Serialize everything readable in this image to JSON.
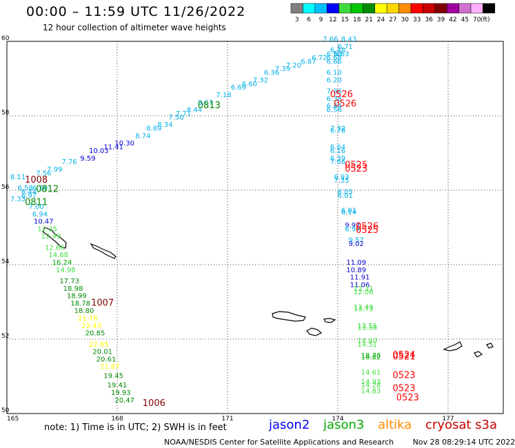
{
  "header": {
    "title": "00:00 – 11:59 UTC 11/26/2022",
    "subtitle": "12 hour collection of altimeter wave heights"
  },
  "legend": {
    "unit": "(ft)",
    "bins": [
      {
        "label": "3",
        "color": "#808080"
      },
      {
        "label": "6",
        "color": "#00ffff"
      },
      {
        "label": "9",
        "color": "#00bfff"
      },
      {
        "label": "12",
        "color": "#0000ff"
      },
      {
        "label": "15",
        "color": "#3cdc3c"
      },
      {
        "label": "18",
        "color": "#00c800"
      },
      {
        "label": "21",
        "color": "#008c00"
      },
      {
        "label": "24",
        "color": "#ffff00"
      },
      {
        "label": "27",
        "color": "#ffd700"
      },
      {
        "label": "30",
        "color": "#ff8c00"
      },
      {
        "label": "33",
        "color": "#ff0000"
      },
      {
        "label": "36",
        "color": "#c80000"
      },
      {
        "label": "39",
        "color": "#800000"
      },
      {
        "label": "42",
        "color": "#a000a0"
      },
      {
        "label": "45",
        "color": "#d070d0"
      },
      {
        "label": "70",
        "color": "#ffb0ff"
      },
      {
        "label": "",
        "color": "#000000"
      }
    ]
  },
  "axes": {
    "lat_labels": [
      "60",
      "58",
      "56",
      "54",
      "52",
      "50"
    ],
    "lon_labels": [
      "165",
      "168",
      "171",
      "174",
      "177"
    ]
  },
  "colors": {
    "c6": "#00b0e8",
    "c12": "#0000cc",
    "c15": "#40dd40",
    "c18": "#00aa00",
    "c21": "#008800",
    "c24": "#ffff00",
    "c33": "#ff0000",
    "c39": "#800000"
  },
  "map_data": {
    "swh_labels": [
      {
        "lon": 173.8,
        "lat": 60.0,
        "text": "7.66",
        "c": "c6"
      },
      {
        "lon": 174.3,
        "lat": 60.0,
        "text": "8.43",
        "c": "c6"
      },
      {
        "lon": 174.2,
        "lat": 59.8,
        "text": "6.71",
        "c": "c6"
      },
      {
        "lon": 174.0,
        "lat": 59.7,
        "text": "6.48",
        "c": "c6"
      },
      {
        "lon": 173.9,
        "lat": 59.6,
        "text": "6.58",
        "c": "c6"
      },
      {
        "lon": 174.1,
        "lat": 59.6,
        "text": "6.63",
        "c": "c6"
      },
      {
        "lon": 173.5,
        "lat": 59.5,
        "text": "6.72",
        "c": "c6"
      },
      {
        "lon": 173.9,
        "lat": 59.5,
        "text": "6.68",
        "c": "c6"
      },
      {
        "lon": 173.9,
        "lat": 59.4,
        "text": "6.66",
        "c": "c6"
      },
      {
        "lon": 173.2,
        "lat": 59.4,
        "text": "6.87",
        "c": "c6"
      },
      {
        "lon": 172.8,
        "lat": 59.3,
        "text": "7.20",
        "c": "c6"
      },
      {
        "lon": 172.5,
        "lat": 59.2,
        "text": "7.39",
        "c": "c6"
      },
      {
        "lon": 172.2,
        "lat": 59.1,
        "text": "6.36",
        "c": "c6"
      },
      {
        "lon": 173.9,
        "lat": 59.1,
        "text": "6.10",
        "c": "c6"
      },
      {
        "lon": 173.9,
        "lat": 58.9,
        "text": "6.20",
        "c": "c6"
      },
      {
        "lon": 171.9,
        "lat": 58.9,
        "text": "7.32",
        "c": "c6"
      },
      {
        "lon": 171.6,
        "lat": 58.8,
        "text": "6.60",
        "c": "c6"
      },
      {
        "lon": 171.3,
        "lat": 58.7,
        "text": "6.69",
        "c": "c6"
      },
      {
        "lon": 173.9,
        "lat": 58.6,
        "text": "7.36",
        "c": "c6"
      },
      {
        "lon": 170.9,
        "lat": 58.5,
        "text": "7.18",
        "c": "c6"
      },
      {
        "lon": 173.9,
        "lat": 58.4,
        "text": "6.38",
        "c": "c6"
      },
      {
        "lon": 170.4,
        "lat": 58.3,
        "text": "8.67",
        "c": "c6"
      },
      {
        "lon": 173.9,
        "lat": 58.2,
        "text": "6.44",
        "c": "c6"
      },
      {
        "lon": 173.9,
        "lat": 58.1,
        "text": "6.56",
        "c": "c6"
      },
      {
        "lon": 170.1,
        "lat": 58.1,
        "text": "8.44",
        "c": "c6"
      },
      {
        "lon": 169.8,
        "lat": 58.0,
        "text": "7.71",
        "c": "c6"
      },
      {
        "lon": 169.6,
        "lat": 57.9,
        "text": "7.50",
        "c": "c6"
      },
      {
        "lon": 169.3,
        "lat": 57.7,
        "text": "8.34",
        "c": "c6"
      },
      {
        "lon": 174.0,
        "lat": 57.6,
        "text": "7.32",
        "c": "c6"
      },
      {
        "lon": 174.0,
        "lat": 57.55,
        "text": "6.78",
        "c": "c6"
      },
      {
        "lon": 169.0,
        "lat": 57.6,
        "text": "8.89",
        "c": "c6"
      },
      {
        "lon": 168.7,
        "lat": 57.4,
        "text": "8.74",
        "c": "c6"
      },
      {
        "lon": 168.2,
        "lat": 57.2,
        "text": "10.30",
        "c": "c12"
      },
      {
        "lon": 167.9,
        "lat": 57.1,
        "text": "11.41",
        "c": "c12"
      },
      {
        "lon": 174.0,
        "lat": 57.1,
        "text": "6.64",
        "c": "c6"
      },
      {
        "lon": 174.0,
        "lat": 57.0,
        "text": "6.16",
        "c": "c6"
      },
      {
        "lon": 167.5,
        "lat": 57.0,
        "text": "10.03",
        "c": "c12"
      },
      {
        "lon": 167.2,
        "lat": 56.8,
        "text": "9.59",
        "c": "c12"
      },
      {
        "lon": 174.0,
        "lat": 56.8,
        "text": "6.39",
        "c": "c6"
      },
      {
        "lon": 174.0,
        "lat": 56.7,
        "text": "7.66",
        "c": "c6"
      },
      {
        "lon": 166.7,
        "lat": 56.7,
        "text": "7.76",
        "c": "c6"
      },
      {
        "lon": 166.3,
        "lat": 56.5,
        "text": "7.99",
        "c": "c6"
      },
      {
        "lon": 166.0,
        "lat": 56.4,
        "text": "7.56",
        "c": "c6"
      },
      {
        "lon": 174.1,
        "lat": 56.3,
        "text": "6.93",
        "c": "c6"
      },
      {
        "lon": 174.1,
        "lat": 56.2,
        "text": "7.35",
        "c": "c6"
      },
      {
        "lon": 165.3,
        "lat": 56.3,
        "text": "8.11",
        "c": "c6"
      },
      {
        "lon": 165.5,
        "lat": 56.0,
        "text": "6.58",
        "c": "c6"
      },
      {
        "lon": 165.9,
        "lat": 56.0,
        "text": "6.50",
        "c": "c6"
      },
      {
        "lon": 165.6,
        "lat": 55.9,
        "text": "6.44",
        "c": "c6"
      },
      {
        "lon": 165.6,
        "lat": 55.8,
        "text": "6.97",
        "c": "c6"
      },
      {
        "lon": 165.3,
        "lat": 55.7,
        "text": "7.33",
        "c": "c6"
      },
      {
        "lon": 174.2,
        "lat": 55.9,
        "text": "6.05",
        "c": "c6"
      },
      {
        "lon": 174.2,
        "lat": 55.8,
        "text": "6.01",
        "c": "c6"
      },
      {
        "lon": 165.8,
        "lat": 55.5,
        "text": "7.00",
        "c": "c6"
      },
      {
        "lon": 174.3,
        "lat": 55.4,
        "text": "6.01",
        "c": "c6"
      },
      {
        "lon": 174.3,
        "lat": 55.35,
        "text": "6.14",
        "c": "c6"
      },
      {
        "lon": 165.9,
        "lat": 55.3,
        "text": "6.94",
        "c": "c6"
      },
      {
        "lon": 166.0,
        "lat": 55.1,
        "text": "10.47",
        "c": "c12"
      },
      {
        "lon": 174.4,
        "lat": 55.0,
        "text": "9.97",
        "c": "c12"
      },
      {
        "lon": 174.4,
        "lat": 54.9,
        "text": "6.94",
        "c": "c6"
      },
      {
        "lon": 166.1,
        "lat": 54.9,
        "text": "12.25",
        "c": "c15"
      },
      {
        "lon": 166.2,
        "lat": 54.7,
        "text": "12.49",
        "c": "c15"
      },
      {
        "lon": 174.5,
        "lat": 54.6,
        "text": "9.57",
        "c": "c6"
      },
      {
        "lon": 174.5,
        "lat": 54.5,
        "text": "9.02",
        "c": "c12"
      },
      {
        "lon": 166.3,
        "lat": 54.4,
        "text": "12.66",
        "c": "c15"
      },
      {
        "lon": 166.4,
        "lat": 54.2,
        "text": "14.68",
        "c": "c15"
      },
      {
        "lon": 166.5,
        "lat": 54.0,
        "text": "16.24",
        "c": "c18"
      },
      {
        "lon": 174.5,
        "lat": 54.0,
        "text": "11.09",
        "c": "c12"
      },
      {
        "lon": 174.5,
        "lat": 53.8,
        "text": "10.89",
        "c": "c12"
      },
      {
        "lon": 166.6,
        "lat": 53.8,
        "text": "14.98",
        "c": "c15"
      },
      {
        "lon": 174.6,
        "lat": 53.6,
        "text": "11.91",
        "c": "c12"
      },
      {
        "lon": 166.7,
        "lat": 53.5,
        "text": "17.73",
        "c": "c21"
      },
      {
        "lon": 174.6,
        "lat": 53.4,
        "text": "11.06",
        "c": "c12"
      },
      {
        "lon": 166.8,
        "lat": 53.3,
        "text": "18.98",
        "c": "c21"
      },
      {
        "lon": 174.7,
        "lat": 53.3,
        "text": "12.31",
        "c": "c15"
      },
      {
        "lon": 174.7,
        "lat": 53.2,
        "text": "12.06",
        "c": "c15"
      },
      {
        "lon": 166.9,
        "lat": 53.1,
        "text": "18.99",
        "c": "c21"
      },
      {
        "lon": 167.0,
        "lat": 52.9,
        "text": "18.78",
        "c": "c21"
      },
      {
        "lon": 174.7,
        "lat": 52.8,
        "text": "12.49",
        "c": "c15"
      },
      {
        "lon": 174.7,
        "lat": 52.75,
        "text": "13.73",
        "c": "c15"
      },
      {
        "lon": 167.1,
        "lat": 52.7,
        "text": "18.80",
        "c": "c21"
      },
      {
        "lon": 167.2,
        "lat": 52.5,
        "text": "21.76",
        "c": "c24"
      },
      {
        "lon": 174.8,
        "lat": 52.3,
        "text": "13.51",
        "c": "c15"
      },
      {
        "lon": 174.8,
        "lat": 52.25,
        "text": "13.30",
        "c": "c15"
      },
      {
        "lon": 167.3,
        "lat": 52.3,
        "text": "22.43",
        "c": "c24"
      },
      {
        "lon": 167.4,
        "lat": 52.1,
        "text": "20.85",
        "c": "c21"
      },
      {
        "lon": 174.8,
        "lat": 51.9,
        "text": "14.40",
        "c": "c15"
      },
      {
        "lon": 174.8,
        "lat": 51.8,
        "text": "14.51",
        "c": "c15"
      },
      {
        "lon": 167.5,
        "lat": 51.8,
        "text": "22.85",
        "c": "c24"
      },
      {
        "lon": 167.6,
        "lat": 51.6,
        "text": "20.01",
        "c": "c21"
      },
      {
        "lon": 174.9,
        "lat": 51.5,
        "text": "18.78",
        "c": "c18"
      },
      {
        "lon": 174.9,
        "lat": 51.45,
        "text": "16.82",
        "c": "c18"
      },
      {
        "lon": 167.7,
        "lat": 51.4,
        "text": "20.61",
        "c": "c21"
      },
      {
        "lon": 167.8,
        "lat": 51.2,
        "text": "21.87",
        "c": "c24"
      },
      {
        "lon": 174.9,
        "lat": 51.05,
        "text": "14.61",
        "c": "c15"
      },
      {
        "lon": 167.9,
        "lat": 50.95,
        "text": "19.45",
        "c": "c21"
      },
      {
        "lon": 174.9,
        "lat": 50.8,
        "text": "14.93",
        "c": "c15"
      },
      {
        "lon": 174.9,
        "lat": 50.7,
        "text": "14.28",
        "c": "c15"
      },
      {
        "lon": 168.0,
        "lat": 50.7,
        "text": "19.41",
        "c": "c21"
      },
      {
        "lon": 174.9,
        "lat": 50.55,
        "text": "14.83",
        "c": "c15"
      },
      {
        "lon": 168.1,
        "lat": 50.5,
        "text": "19.93",
        "c": "c21"
      },
      {
        "lon": 168.2,
        "lat": 50.3,
        "text": "20.47",
        "c": "c21"
      }
    ],
    "time_labels": [
      {
        "lon": 174.1,
        "lat": 58.5,
        "text": "0526",
        "c": "c33"
      },
      {
        "lon": 174.2,
        "lat": 58.25,
        "text": "0526",
        "c": "c33"
      },
      {
        "lon": 170.5,
        "lat": 58.2,
        "text": "0813",
        "c": "c21"
      },
      {
        "lon": 174.5,
        "lat": 56.6,
        "text": "0525",
        "c": "c33"
      },
      {
        "lon": 174.5,
        "lat": 56.5,
        "text": "0523",
        "c": "c33"
      },
      {
        "lon": 165.8,
        "lat": 56.2,
        "text": "1008",
        "c": "c39"
      },
      {
        "lon": 166.1,
        "lat": 55.95,
        "text": "0812",
        "c": "c21"
      },
      {
        "lon": 165.8,
        "lat": 55.6,
        "text": "0811",
        "c": "c21"
      },
      {
        "lon": 174.8,
        "lat": 54.95,
        "text": "0526",
        "c": "c33"
      },
      {
        "lon": 174.8,
        "lat": 54.85,
        "text": "0525",
        "c": "c33"
      },
      {
        "lon": 167.6,
        "lat": 52.9,
        "text": "1007",
        "c": "c39"
      },
      {
        "lon": 175.8,
        "lat": 51.5,
        "text": "0524",
        "c": "c33"
      },
      {
        "lon": 175.8,
        "lat": 51.45,
        "text": "0521",
        "c": "c33"
      },
      {
        "lon": 175.8,
        "lat": 50.95,
        "text": "0523",
        "c": "c33"
      },
      {
        "lon": 175.8,
        "lat": 50.6,
        "text": "0523",
        "c": "c33"
      },
      {
        "lon": 175.9,
        "lat": 50.35,
        "text": "0523",
        "c": "c33"
      },
      {
        "lon": 169.0,
        "lat": 50.2,
        "text": "1006",
        "c": "c39"
      }
    ]
  },
  "note": "note: 1) Time is in UTC; 2) SWH is in feet",
  "satellites": [
    {
      "name": "jason2",
      "color": "#0000ff"
    },
    {
      "name": "jason3",
      "color": "#00aa00"
    },
    {
      "name": "altika",
      "color": "#ff8c00"
    },
    {
      "name": "cryosat s3a",
      "color": "#cc0000"
    }
  ],
  "footer": {
    "source": "NOAA/NESDIS Center for Satellite Applications and Research",
    "timestamp": "Nov 28 08:29:14 UTC 2022"
  }
}
